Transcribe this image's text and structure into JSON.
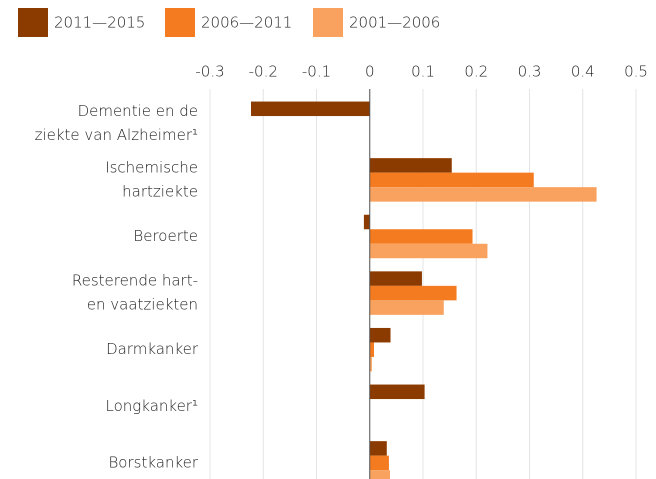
{
  "chart_data": {
    "type": "bar",
    "orientation": "horizontal",
    "categories": [
      [
        "Dementie en de",
        "ziekte van Alzheimer¹"
      ],
      [
        "Ischemische",
        "hartziekte"
      ],
      [
        "Beroerte"
      ],
      [
        "Resterende hart-",
        "en vaatziekten"
      ],
      [
        "Darmkanker"
      ],
      [
        "Longkanker¹"
      ],
      [
        "Borstkanker"
      ]
    ],
    "series": [
      {
        "name": "2011—2015",
        "color": "#8c3b00",
        "values": [
          -0.223,
          0.154,
          -0.011,
          0.098,
          0.039,
          0.103,
          0.032
        ]
      },
      {
        "name": "2006—2011",
        "color": "#f47b20",
        "values": [
          null,
          0.308,
          0.193,
          0.163,
          0.008,
          null,
          0.036
        ]
      },
      {
        "name": "2001—2006",
        "color": "#f9a25f",
        "values": [
          null,
          0.426,
          0.221,
          0.139,
          0.004,
          null,
          0.038
        ]
      }
    ],
    "xlim": [
      -0.3,
      0.5
    ],
    "xticks": [
      -0.3,
      -0.2,
      -0.1,
      0.0,
      0.1,
      0.2,
      0.3,
      0.4,
      0.5
    ],
    "legend": "top-left"
  }
}
